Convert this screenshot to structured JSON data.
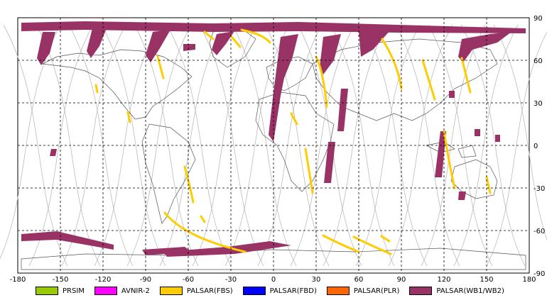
{
  "map": {
    "x_ticks": [
      "-180",
      "-150",
      "-120",
      "-90",
      "-60",
      "-30",
      "0",
      "30",
      "60",
      "90",
      "120",
      "150",
      "180"
    ],
    "y_ticks": [
      "90",
      "60",
      "30",
      "0",
      "-30",
      "-60",
      "-90"
    ],
    "grid": "dashed"
  },
  "legend": [
    {
      "label": "PRSIM",
      "color": "#99cc00"
    },
    {
      "label": "AVNIR-2",
      "color": "#ff00ff"
    },
    {
      "label": "PALSAR(FBS)",
      "color": "#ffcc00"
    },
    {
      "label": "PALSAR(FBD)",
      "color": "#0000ff"
    },
    {
      "label": "PALSAR(PLR)",
      "color": "#ff6600"
    },
    {
      "label": "PALSAR(WB1/WB2)",
      "color": "#993366"
    }
  ]
}
